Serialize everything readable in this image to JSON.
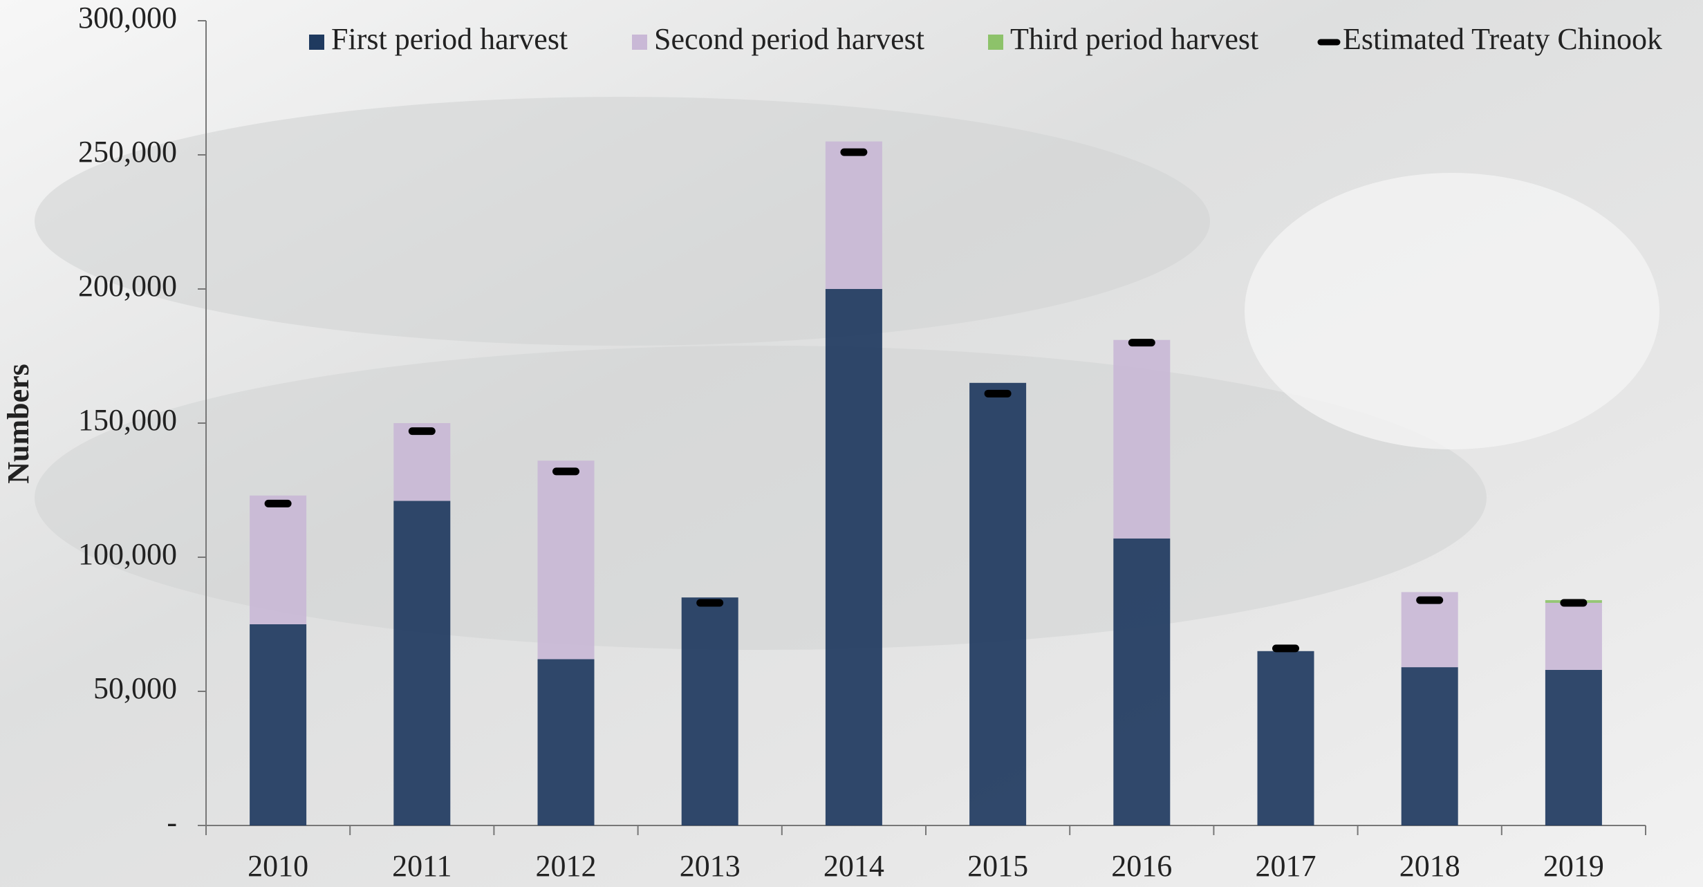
{
  "chart_data": {
    "type": "bar",
    "stacked": true,
    "y_label": "Numbers",
    "categories": [
      "2010",
      "2011",
      "2012",
      "2013",
      "2014",
      "2015",
      "2016",
      "2017",
      "2018",
      "2019"
    ],
    "series": [
      {
        "name": "First period harvest",
        "color": "#1f3a5f",
        "values": [
          75000,
          121000,
          62000,
          85000,
          200000,
          165000,
          107000,
          65000,
          59000,
          58000
        ]
      },
      {
        "name": "Second period harvest",
        "color": "#c9b8d6",
        "values": [
          48000,
          29000,
          74000,
          0,
          55000,
          0,
          74000,
          0,
          28000,
          25000
        ]
      },
      {
        "name": "Third period harvest",
        "color": "#8dc26a",
        "values": [
          0,
          0,
          0,
          0,
          0,
          0,
          0,
          0,
          0,
          1000
        ]
      },
      {
        "name": "Estimated Treaty Chinook",
        "color": "#000000",
        "type": "marker",
        "values": [
          120000,
          147000,
          132000,
          83000,
          251000,
          161000,
          180000,
          66000,
          84000,
          83000
        ]
      }
    ],
    "ylim": [
      0,
      300000
    ],
    "yticks": [
      {
        "value": 0,
        "label": "-"
      },
      {
        "value": 50000,
        "label": "50,000"
      },
      {
        "value": 100000,
        "label": "100,000"
      },
      {
        "value": 150000,
        "label": "150,000"
      },
      {
        "value": 200000,
        "label": "200,000"
      },
      {
        "value": 250000,
        "label": "250,000"
      },
      {
        "value": 300000,
        "label": "300,000"
      }
    ],
    "grid": false,
    "legend": "top"
  }
}
